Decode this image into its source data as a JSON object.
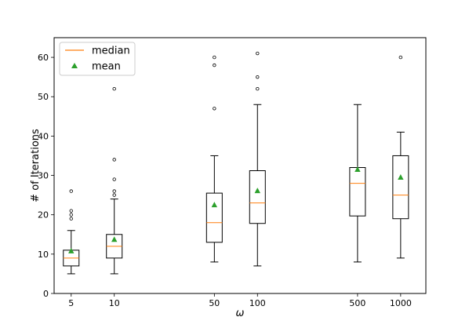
{
  "chart_data": {
    "type": "box",
    "title": "",
    "xlabel": "ω",
    "ylabel": "# of Iterations",
    "x_scale": "log",
    "xlim": [
      3.8,
      1500
    ],
    "ylim": [
      0,
      65
    ],
    "x_ticks": [
      5,
      10,
      50,
      100,
      500,
      1000
    ],
    "x_tick_labels": [
      "5",
      "10",
      "50",
      "100",
      "500",
      "1000"
    ],
    "y_ticks": [
      0,
      10,
      20,
      30,
      40,
      50,
      60
    ],
    "y_tick_labels": [
      "0",
      "10",
      "20",
      "30",
      "40",
      "50",
      "60"
    ],
    "grid": false,
    "legend": {
      "placement": "top-left",
      "entries": [
        {
          "label": "median",
          "marker": "line",
          "color": "#ff7f0e"
        },
        {
          "label": "mean",
          "marker": "triangle",
          "color": "#2ca02c"
        }
      ]
    },
    "boxes": [
      {
        "x": 5,
        "whisker_low": 5,
        "q1": 7,
        "median": 9,
        "q3": 11,
        "whisker_high": 16,
        "mean": 10.8,
        "outliers": [
          19,
          20,
          21,
          26
        ]
      },
      {
        "x": 10,
        "whisker_low": 5,
        "q1": 9,
        "median": 12,
        "q3": 15,
        "whisker_high": 24,
        "mean": 13.7,
        "outliers": [
          25,
          26,
          29,
          34,
          52
        ]
      },
      {
        "x": 50,
        "whisker_low": 8,
        "q1": 13,
        "median": 18,
        "q3": 25.5,
        "whisker_high": 35,
        "mean": 22.5,
        "outliers": [
          47,
          58,
          60
        ]
      },
      {
        "x": 100,
        "whisker_low": 7,
        "q1": 17.8,
        "median": 23,
        "q3": 31.2,
        "whisker_high": 48,
        "mean": 26.1,
        "outliers": [
          52,
          55,
          61
        ]
      },
      {
        "x": 500,
        "whisker_low": 8,
        "q1": 19.7,
        "median": 28,
        "q3": 32,
        "whisker_high": 48,
        "mean": 31.5,
        "outliers": []
      },
      {
        "x": 1000,
        "whisker_low": 9,
        "q1": 19,
        "median": 25,
        "q3": 35,
        "whisker_high": 41,
        "mean": 29.5,
        "outliers": [
          60
        ]
      }
    ],
    "colors": {
      "box": "#000000",
      "median": "#ff7f0e",
      "mean": "#2ca02c"
    }
  }
}
